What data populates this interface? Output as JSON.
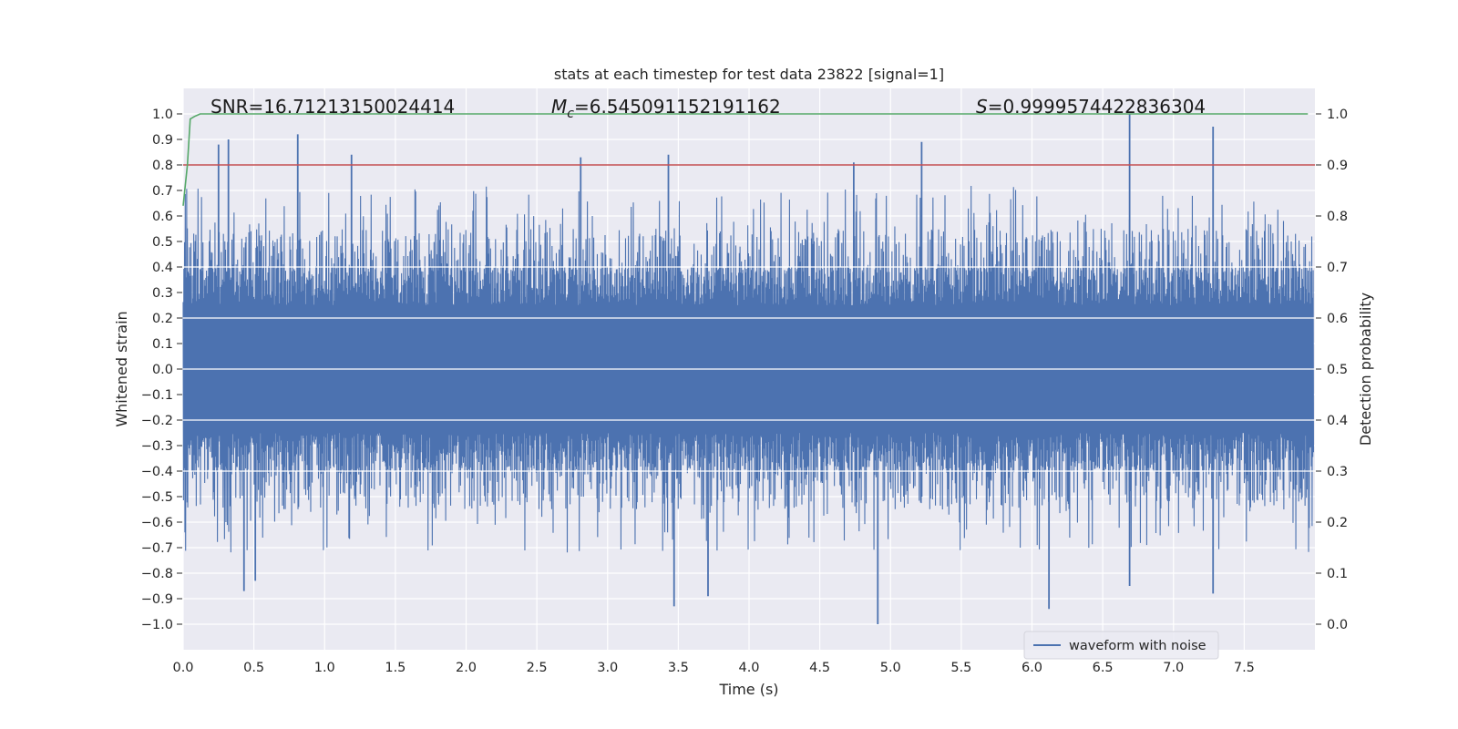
{
  "chart_data": {
    "type": "line",
    "title": "stats at each timestep for test data 23822 [signal=1]",
    "xlabel": "Time (s)",
    "ylabel": "Whitened strain",
    "y2label": "Detection probability",
    "xlim": [
      0.0,
      8.0
    ],
    "ylim": [
      -1.1,
      1.1
    ],
    "y2lim": [
      -0.05,
      1.05
    ],
    "x_ticks": [
      "0.0",
      "0.5",
      "1.0",
      "1.5",
      "2.0",
      "2.5",
      "3.0",
      "3.5",
      "4.0",
      "4.5",
      "5.0",
      "5.5",
      "6.0",
      "6.5",
      "7.0",
      "7.5"
    ],
    "y_ticks": [
      "1.0",
      "0.9",
      "0.8",
      "0.7",
      "0.6",
      "0.5",
      "0.4",
      "0.3",
      "0.2",
      "0.1",
      "0.0",
      "−0.1",
      "−0.2",
      "−0.3",
      "−0.4",
      "−0.5",
      "−0.6",
      "−0.7",
      "−0.8",
      "−0.9",
      "−1.0"
    ],
    "y2_ticks": [
      "1.0",
      "0.9",
      "0.8",
      "0.7",
      "0.6",
      "0.5",
      "0.4",
      "0.3",
      "0.2",
      "0.1",
      "0.0"
    ],
    "grid": true,
    "legend_position": "lower-right",
    "annotations": {
      "snr": "SNR=16.71213150024414",
      "mc_symbol": "M",
      "mc_sub": "c",
      "mc_value": "=6.545091152191162",
      "s_symbol": "S",
      "s_value": "=0.9999574422836304"
    },
    "threshold": {
      "axis": "y2",
      "value": 0.9,
      "color": "#c44e52"
    },
    "series": [
      {
        "name": "waveform with noise",
        "axis": "y",
        "color": "#4c72b0",
        "note_pattern": "dense noise, amplitude ~0.4",
        "x_range": [
          0.0,
          7.99
        ],
        "peak_values": [
          [
            0.25,
            0.88
          ],
          [
            0.32,
            0.9
          ],
          [
            0.81,
            0.92
          ],
          [
            1.19,
            0.84
          ],
          [
            2.81,
            0.83
          ],
          [
            3.43,
            0.84
          ],
          [
            4.74,
            0.81
          ],
          [
            5.22,
            0.89
          ],
          [
            6.69,
            1.0
          ],
          [
            7.28,
            0.95
          ],
          [
            0.43,
            -0.87
          ],
          [
            0.51,
            -0.83
          ],
          [
            3.47,
            -0.93
          ],
          [
            3.71,
            -0.89
          ],
          [
            4.91,
            -1.0
          ],
          [
            6.12,
            -0.94
          ],
          [
            6.69,
            -0.85
          ],
          [
            7.28,
            -0.88
          ]
        ]
      },
      {
        "name": "",
        "axis": "y2",
        "color": "#55a868",
        "x": [
          0.0,
          0.03,
          0.05,
          0.08,
          0.12,
          0.2,
          7.95
        ],
        "values": [
          0.82,
          0.9,
          0.99,
          0.995,
          1.0,
          1.0,
          1.0
        ]
      }
    ],
    "colors": {
      "plot_background": "#eaeaf2",
      "grid": "#ffffff",
      "waveform": "#4c72b0",
      "probability": "#55a868",
      "threshold": "#c44e52"
    }
  }
}
